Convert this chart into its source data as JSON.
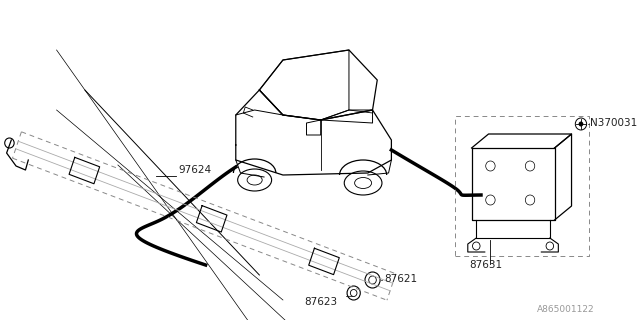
{
  "background_color": "#ffffff",
  "line_color": "#000000",
  "dashed_line_color": "#888888",
  "gray_line_color": "#aaaaaa",
  "diagram_id": "A865001122",
  "label_97624": "97624",
  "label_87621": "87621",
  "label_87623": "87623",
  "label_87631": "87631",
  "label_N370031": "N370031",
  "font_size": 7.5
}
